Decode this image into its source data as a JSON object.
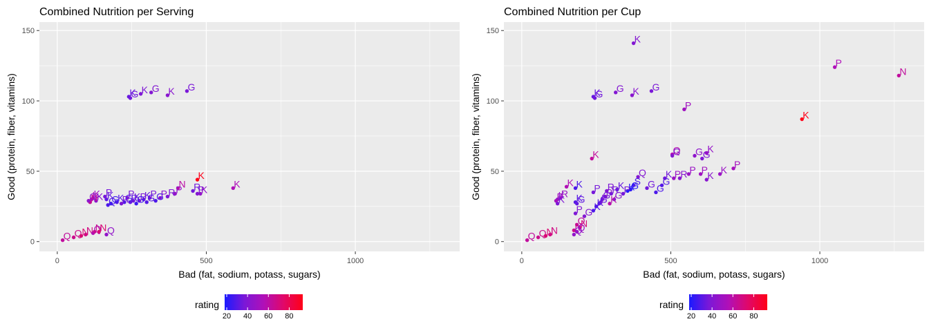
{
  "colorbar_stops": [
    "#1a1aff",
    "#7a18d8",
    "#b010b8",
    "#e0086a",
    "#ff0018"
  ],
  "chart_data": [
    {
      "type": "scatter",
      "title": "Combined Nutrition per Serving",
      "xlabel": "Bad (fat, sodium, potass, sugars)",
      "ylabel": "Good (protein, fiber, vitamins)",
      "xlim": [
        -60,
        1350
      ],
      "ylim": [
        -7,
        156
      ],
      "xticks": [
        0,
        500,
        1000
      ],
      "yticks": [
        0,
        50,
        100,
        150
      ],
      "grid": true,
      "legend": {
        "title": "rating",
        "placement": "bottom",
        "ticks": [
          20,
          40,
          60,
          80
        ],
        "range": [
          18,
          93
        ]
      },
      "points": [
        {
          "x": 240,
          "y": 103,
          "label": "K",
          "rating": 33
        },
        {
          "x": 245,
          "y": 102,
          "label": "G",
          "rating": 35
        },
        {
          "x": 280,
          "y": 105,
          "label": "K",
          "rating": 38
        },
        {
          "x": 315,
          "y": 106,
          "label": "G",
          "rating": 40
        },
        {
          "x": 370,
          "y": 104,
          "label": "K",
          "rating": 42
        },
        {
          "x": 435,
          "y": 107,
          "label": "G",
          "rating": 37
        },
        {
          "x": 480,
          "y": 34,
          "label": "K",
          "rating": 45
        },
        {
          "x": 470,
          "y": 44,
          "label": "K",
          "rating": 93
        },
        {
          "x": 470,
          "y": 34,
          "label": "P",
          "rating": 40
        },
        {
          "x": 455,
          "y": 36,
          "label": "R",
          "rating": 35
        },
        {
          "x": 405,
          "y": 38,
          "label": "N",
          "rating": 60
        },
        {
          "x": 590,
          "y": 38,
          "label": "K",
          "rating": 55
        },
        {
          "x": 395,
          "y": 34,
          "label": "P",
          "rating": 45
        },
        {
          "x": 370,
          "y": 32,
          "label": "R",
          "rating": 38
        },
        {
          "x": 345,
          "y": 31,
          "label": "P",
          "rating": 42
        },
        {
          "x": 330,
          "y": 29,
          "label": "G",
          "rating": 28
        },
        {
          "x": 310,
          "y": 31,
          "label": "P",
          "rating": 36
        },
        {
          "x": 300,
          "y": 28,
          "label": "G",
          "rating": 30
        },
        {
          "x": 290,
          "y": 30,
          "label": "K",
          "rating": 33
        },
        {
          "x": 275,
          "y": 29,
          "label": "P",
          "rating": 38
        },
        {
          "x": 265,
          "y": 27,
          "label": "G",
          "rating": 25
        },
        {
          "x": 255,
          "y": 29,
          "label": "K",
          "rating": 35
        },
        {
          "x": 245,
          "y": 28,
          "label": "R",
          "rating": 32
        },
        {
          "x": 235,
          "y": 31,
          "label": "P",
          "rating": 37
        },
        {
          "x": 225,
          "y": 28,
          "label": "G",
          "rating": 29
        },
        {
          "x": 215,
          "y": 27,
          "label": "R",
          "rating": 38
        },
        {
          "x": 200,
          "y": 28,
          "label": "K",
          "rating": 30
        },
        {
          "x": 180,
          "y": 27,
          "label": "G",
          "rating": 25
        },
        {
          "x": 170,
          "y": 26,
          "label": "Q",
          "rating": 28
        },
        {
          "x": 165,
          "y": 30,
          "label": "K",
          "rating": 32
        },
        {
          "x": 160,
          "y": 32,
          "label": "P",
          "rating": 36
        },
        {
          "x": 130,
          "y": 29,
          "label": "K",
          "rating": 40
        },
        {
          "x": 120,
          "y": 31,
          "label": "K",
          "rating": 48
        },
        {
          "x": 115,
          "y": 30,
          "label": "K",
          "rating": 56
        },
        {
          "x": 110,
          "y": 28,
          "label": "N",
          "rating": 64
        },
        {
          "x": 105,
          "y": 29,
          "label": "G",
          "rating": 44
        },
        {
          "x": 18,
          "y": 1,
          "label": "Q",
          "rating": 62
        },
        {
          "x": 55,
          "y": 3,
          "label": "Q",
          "rating": 66
        },
        {
          "x": 80,
          "y": 4,
          "label": "N",
          "rating": 72
        },
        {
          "x": 95,
          "y": 5,
          "label": "N",
          "rating": 68
        },
        {
          "x": 120,
          "y": 6,
          "label": "Q",
          "rating": 56
        },
        {
          "x": 125,
          "y": 7,
          "label": "N",
          "rating": 64
        },
        {
          "x": 140,
          "y": 7,
          "label": "N",
          "rating": 72
        },
        {
          "x": 165,
          "y": 5,
          "label": "Q",
          "rating": 45
        }
      ]
    },
    {
      "type": "scatter",
      "title": "Combined Nutrition per Cup",
      "xlabel": "Bad (fat, sodium, potass, sugars)",
      "ylabel": "Good (protein, fiber, vitamins)",
      "xlim": [
        -60,
        1350
      ],
      "ylim": [
        -7,
        156
      ],
      "xticks": [
        0,
        500,
        1000
      ],
      "yticks": [
        0,
        50,
        100,
        150
      ],
      "grid": true,
      "legend": {
        "title": "rating",
        "placement": "bottom",
        "ticks": [
          20,
          40,
          60,
          80
        ],
        "range": [
          18,
          93
        ]
      },
      "points": [
        {
          "x": 375,
          "y": 141,
          "label": "K",
          "rating": 40
        },
        {
          "x": 1050,
          "y": 124,
          "label": "P",
          "rating": 55
        },
        {
          "x": 1265,
          "y": 118,
          "label": "N",
          "rating": 62
        },
        {
          "x": 940,
          "y": 87,
          "label": "K",
          "rating": 93
        },
        {
          "x": 545,
          "y": 94,
          "label": "P",
          "rating": 50
        },
        {
          "x": 240,
          "y": 103,
          "label": "K",
          "rating": 33
        },
        {
          "x": 245,
          "y": 102,
          "label": "G",
          "rating": 35
        },
        {
          "x": 315,
          "y": 106,
          "label": "G",
          "rating": 40
        },
        {
          "x": 370,
          "y": 104,
          "label": "K",
          "rating": 42
        },
        {
          "x": 435,
          "y": 107,
          "label": "G",
          "rating": 37
        },
        {
          "x": 235,
          "y": 59,
          "label": "K",
          "rating": 62
        },
        {
          "x": 505,
          "y": 62,
          "label": "Q",
          "rating": 57
        },
        {
          "x": 505,
          "y": 61,
          "label": "G",
          "rating": 40
        },
        {
          "x": 580,
          "y": 61,
          "label": "G",
          "rating": 44
        },
        {
          "x": 605,
          "y": 59,
          "label": "G",
          "rating": 38
        },
        {
          "x": 620,
          "y": 63,
          "label": "K",
          "rating": 46
        },
        {
          "x": 710,
          "y": 52,
          "label": "P",
          "rating": 52
        },
        {
          "x": 665,
          "y": 48,
          "label": "K",
          "rating": 48
        },
        {
          "x": 600,
          "y": 48,
          "label": "P",
          "rating": 50
        },
        {
          "x": 560,
          "y": 48,
          "label": "P",
          "rating": 48
        },
        {
          "x": 620,
          "y": 44,
          "label": "K",
          "rating": 42
        },
        {
          "x": 530,
          "y": 45,
          "label": "R",
          "rating": 42
        },
        {
          "x": 510,
          "y": 45,
          "label": "P",
          "rating": 48
        },
        {
          "x": 480,
          "y": 45,
          "label": "K",
          "rating": 35
        },
        {
          "x": 470,
          "y": 40,
          "label": "G",
          "rating": 30
        },
        {
          "x": 450,
          "y": 35,
          "label": "G",
          "rating": 28
        },
        {
          "x": 420,
          "y": 38,
          "label": "G",
          "rating": 35
        },
        {
          "x": 390,
          "y": 46,
          "label": "Q",
          "rating": 40
        },
        {
          "x": 375,
          "y": 40,
          "label": "S",
          "rating": 28
        },
        {
          "x": 365,
          "y": 37,
          "label": "G",
          "rating": 22
        },
        {
          "x": 355,
          "y": 36,
          "label": "K",
          "rating": 20
        },
        {
          "x": 340,
          "y": 34,
          "label": "P",
          "rating": 36
        },
        {
          "x": 320,
          "y": 37,
          "label": "K",
          "rating": 33
        },
        {
          "x": 310,
          "y": 30,
          "label": "G",
          "rating": 40
        },
        {
          "x": 300,
          "y": 34,
          "label": "R",
          "rating": 36
        },
        {
          "x": 295,
          "y": 27,
          "label": "K",
          "rating": 58
        },
        {
          "x": 285,
          "y": 36,
          "label": "R",
          "rating": 38
        },
        {
          "x": 280,
          "y": 32,
          "label": "P",
          "rating": 42
        },
        {
          "x": 270,
          "y": 30,
          "label": "G",
          "rating": 36
        },
        {
          "x": 265,
          "y": 28,
          "label": "P",
          "rating": 40
        },
        {
          "x": 260,
          "y": 27,
          "label": "G",
          "rating": 33
        },
        {
          "x": 250,
          "y": 25,
          "label": "K",
          "rating": 30
        },
        {
          "x": 240,
          "y": 22,
          "label": "K",
          "rating": 28
        },
        {
          "x": 240,
          "y": 35,
          "label": "P",
          "rating": 36
        },
        {
          "x": 210,
          "y": 18,
          "label": "G",
          "rating": 40
        },
        {
          "x": 180,
          "y": 20,
          "label": "P",
          "rating": 38
        },
        {
          "x": 180,
          "y": 28,
          "label": "K",
          "rating": 30
        },
        {
          "x": 180,
          "y": 38,
          "label": "K",
          "rating": 28
        },
        {
          "x": 185,
          "y": 27,
          "label": "G",
          "rating": 32
        },
        {
          "x": 150,
          "y": 39,
          "label": "K",
          "rating": 56
        },
        {
          "x": 130,
          "y": 31,
          "label": "R",
          "rating": 48
        },
        {
          "x": 120,
          "y": 30,
          "label": "K",
          "rating": 42
        },
        {
          "x": 115,
          "y": 29,
          "label": "P",
          "rating": 52
        },
        {
          "x": 120,
          "y": 27,
          "label": "K",
          "rating": 38
        },
        {
          "x": 185,
          "y": 12,
          "label": "Q",
          "rating": 62
        },
        {
          "x": 195,
          "y": 10,
          "label": "N",
          "rating": 70
        },
        {
          "x": 175,
          "y": 8,
          "label": "N",
          "rating": 66
        },
        {
          "x": 185,
          "y": 7,
          "label": "Q",
          "rating": 48
        },
        {
          "x": 175,
          "y": 5,
          "label": "Q",
          "rating": 45
        },
        {
          "x": 18,
          "y": 1,
          "label": "Q",
          "rating": 62
        },
        {
          "x": 55,
          "y": 3,
          "label": "Q",
          "rating": 66
        },
        {
          "x": 80,
          "y": 4,
          "label": "N",
          "rating": 72
        },
        {
          "x": 95,
          "y": 5,
          "label": "N",
          "rating": 68
        }
      ]
    }
  ]
}
